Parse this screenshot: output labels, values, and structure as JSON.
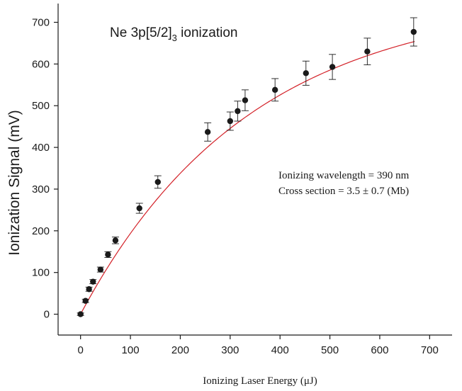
{
  "chart_data": {
    "type": "scatter",
    "title": {
      "prefix": "Ne 3p[5/2]",
      "subscript": "3",
      "suffix": " ionization"
    },
    "xlabel": "Ionizing Laser Energy (μJ)",
    "ylabel": "Ionization Signal (mV)",
    "xlim": [
      -45,
      745
    ],
    "ylim": [
      -50,
      745
    ],
    "xticks": [
      0,
      100,
      200,
      300,
      400,
      500,
      600,
      700
    ],
    "yticks": [
      0,
      100,
      200,
      300,
      400,
      500,
      600,
      700
    ],
    "annotations": [
      "Ionizing wavelength = 390 nm",
      "Cross section = 3.5 ± 0.7 (Mb)"
    ],
    "series": [
      {
        "marker_color": "#1a1a1a",
        "x": [
          0,
          10,
          17,
          25,
          40,
          55,
          70,
          118,
          155,
          255,
          300,
          315,
          330,
          390,
          452,
          505,
          575,
          668
        ],
        "y": [
          0,
          32,
          60,
          78,
          107,
          143,
          177,
          254,
          317,
          437,
          463,
          487,
          513,
          538,
          578,
          593,
          630,
          677
        ],
        "yerr": [
          3,
          4,
          5,
          5,
          6,
          7,
          8,
          12,
          15,
          22,
          22,
          24,
          25,
          27,
          29,
          30,
          32,
          34
        ]
      }
    ],
    "fit": {
      "color": "#d32027",
      "amplitude": 760,
      "scale": 340,
      "x_range": [
        0,
        670
      ]
    },
    "grid": false,
    "legend": "none"
  }
}
